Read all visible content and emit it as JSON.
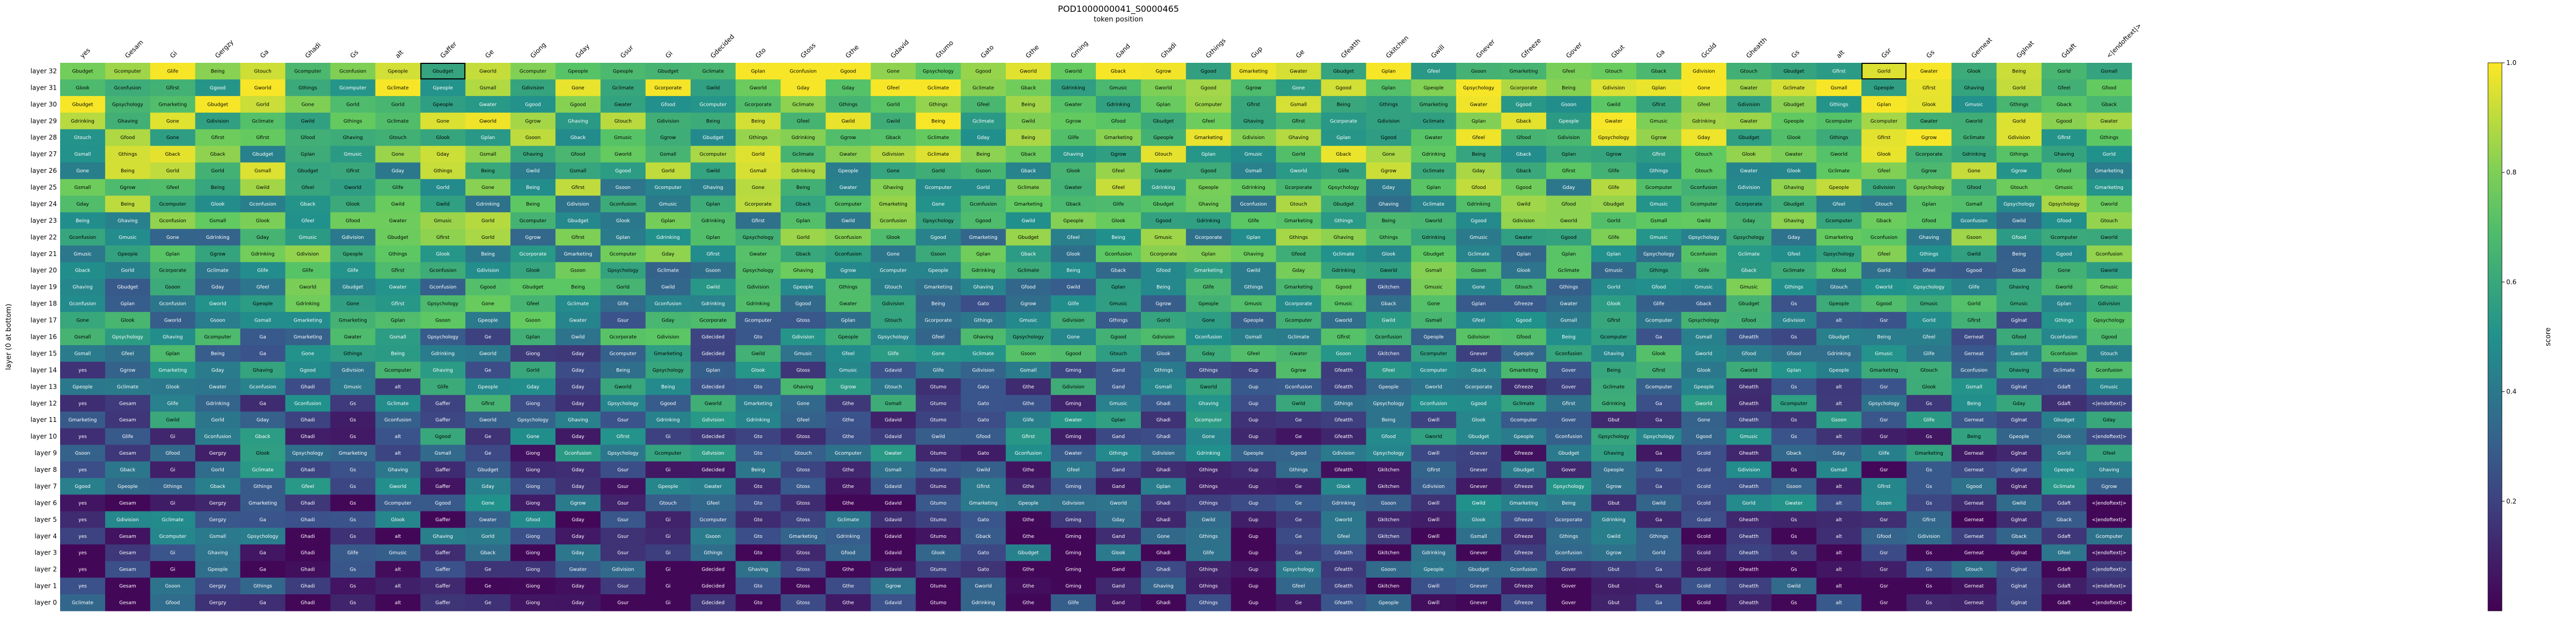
{
  "chart_data": {
    "type": "heatmap",
    "title": "POD1000000041_S0000465",
    "subtitle": "token position",
    "ylabel": "layer (0 at bottom)",
    "colorbar_label": "score",
    "colormap": "viridis",
    "value_range": [
      0,
      1
    ],
    "colorbar_ticks": [
      "0.2",
      "0.4",
      "0.6",
      "0.8",
      "1.0"
    ],
    "colorbar_tick_values": [
      0.2,
      0.4,
      0.6,
      0.8,
      1.0
    ],
    "x_tokens": [
      "yes",
      "Gesam",
      "Gi",
      "Gergzy",
      "Ga",
      "Ghadi",
      "Gs",
      "alt",
      "Gaffer",
      "Ge",
      "Giong",
      "Gday",
      "Gsur",
      "Gi",
      "Gdecided",
      "Gto",
      "Gtoss",
      "Gthe",
      "Gdavid",
      "Gtumo",
      "Gato",
      "Gthe",
      "Gming",
      "Gand",
      "Ghadi",
      "Gthings",
      "Gup",
      "Ge",
      "Gfeatth",
      "Gkitchen",
      "Gwill",
      "Gnever",
      "Gfreeze",
      "Gover",
      "Gbut",
      "Ga",
      "Gcold",
      "Gheatth",
      "Gs",
      "alt",
      "Gsr",
      "Gs",
      "Gerneat",
      "Gglnat",
      "Gdaft",
      "<|endoftext|>"
    ],
    "y_layers": [
      "layer 32",
      "layer 31",
      "layer 30",
      "layer 29",
      "layer 28",
      "layer 27",
      "layer 26",
      "layer 25",
      "layer 24",
      "layer 23",
      "layer 22",
      "layer 21",
      "layer 20",
      "layer 19",
      "layer 18",
      "layer 17",
      "layer 16",
      "layer 15",
      "layer 14",
      "layer 13",
      "layer 12",
      "layer 11",
      "layer 10",
      "layer 9",
      "layer 8",
      "layer 7",
      "layer 6",
      "layer 5",
      "layer 4",
      "layer 3",
      "layer 2",
      "layer 1",
      "layer 0"
    ],
    "label_pool": [
      "Being",
      "Gcorporate",
      "Gmusic",
      "Gconfusion",
      "Gdivision",
      "Gsmall",
      "Gwater",
      "Gcomputer",
      "Gpsychology",
      "Gmarketing",
      "Gdrinking",
      "Gthings",
      "Gbudget",
      "Gwild",
      "Ghaving",
      "Gpeople",
      "Gtouch",
      "Gfeel",
      "Gclimate",
      "Ggood",
      "Gplan",
      "Gsoon",
      "Ggrow",
      "Gfood",
      "Glife",
      "Gone",
      "Gfirst",
      "Glook",
      "Gworld",
      "Gback",
      "Gday",
      "Gorld"
    ],
    "highlight_cells": [
      [
        0,
        8
      ],
      [
        0,
        40
      ]
    ],
    "grid": false
  }
}
